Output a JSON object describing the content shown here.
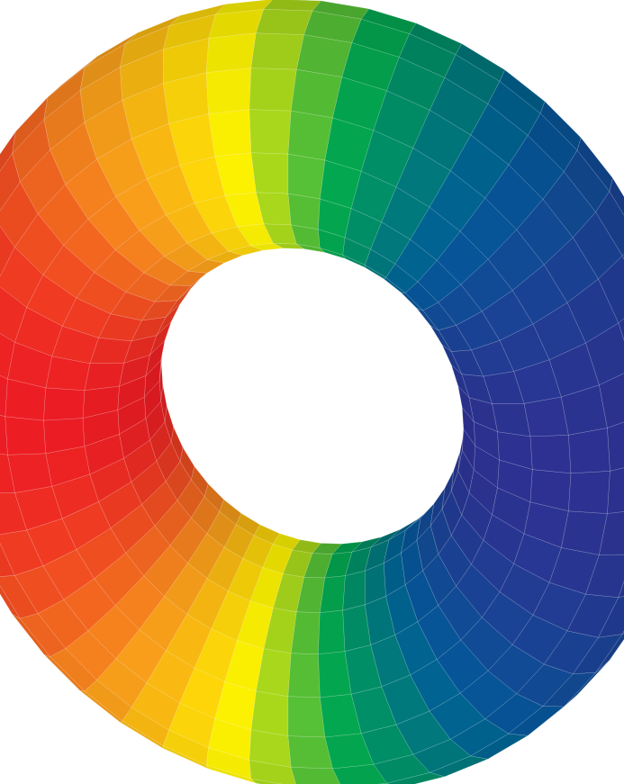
{
  "figure": {
    "shape": "torus",
    "surface": {
      "rings": 48,
      "tubes": 18,
      "mesh_line_color": "#ffffff",
      "background_color": "#ffffff"
    },
    "colormap": [
      "#2e3192",
      "#005b99",
      "#00a651",
      "#fff200",
      "#f7941d",
      "#ed1c24"
    ]
  }
}
